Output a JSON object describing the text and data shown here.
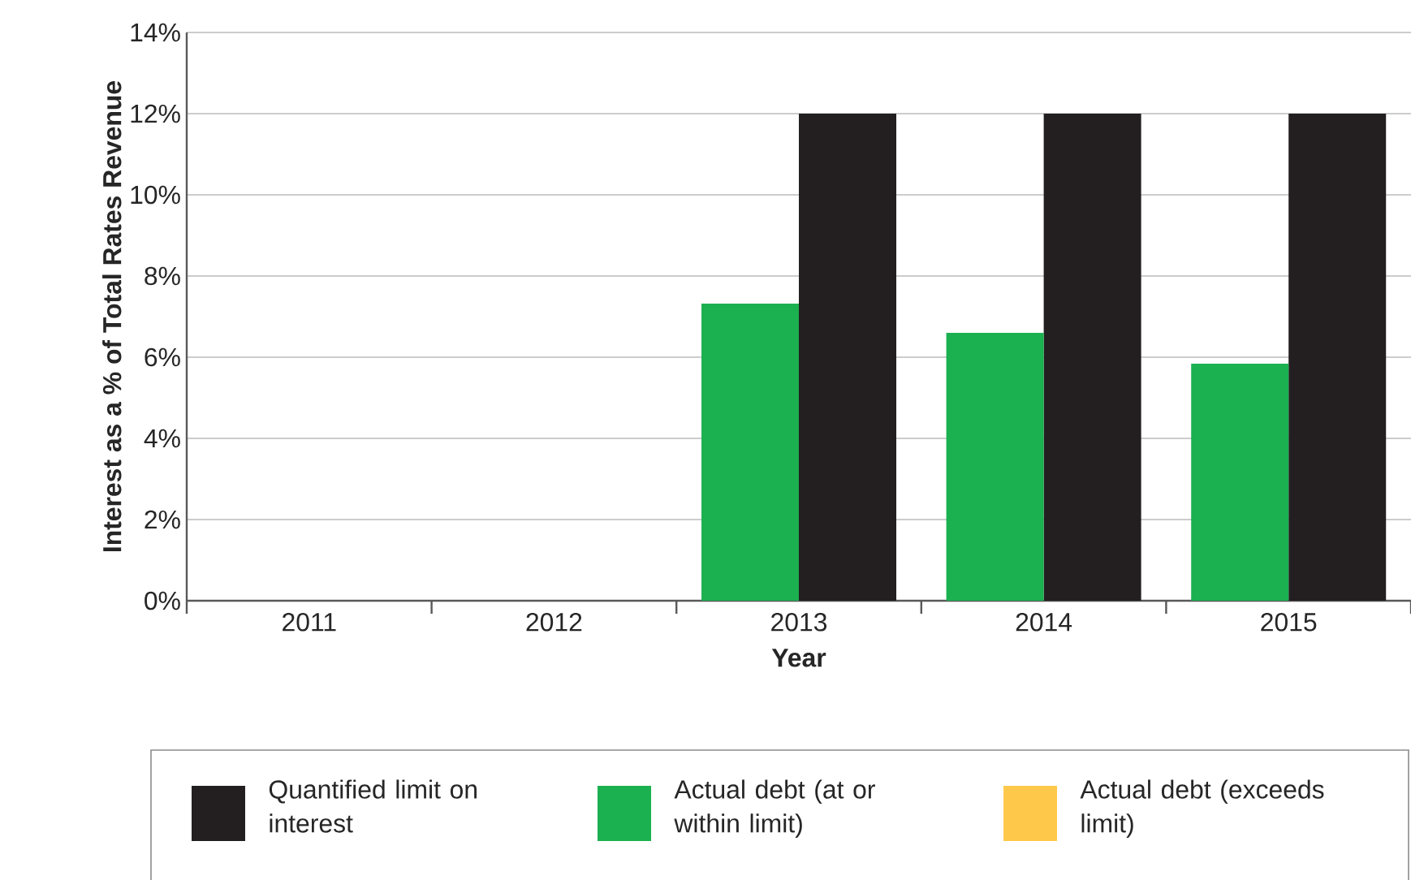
{
  "chart_data": {
    "type": "bar",
    "ylabel": "Interest as a % of Total Rates Revenue",
    "xlabel": "Year",
    "categories": [
      "2011",
      "2012",
      "2013",
      "2014",
      "2015"
    ],
    "series": [
      {
        "name": "Quantified limit on interest",
        "color": "#231f20",
        "values": [
          null,
          null,
          12,
          12,
          12
        ]
      },
      {
        "name": "Actual debt (at or within limit)",
        "color": "#1bb050",
        "values": [
          null,
          null,
          7.32,
          6.6,
          5.84
        ]
      },
      {
        "name": "Actual debt (exceeds limit)",
        "color": "#fec94a",
        "values": [
          null,
          null,
          null,
          null,
          null
        ]
      }
    ],
    "ylim": [
      0,
      14
    ],
    "yticks": [
      {
        "value": 0,
        "label": "0%"
      },
      {
        "value": 2,
        "label": "2%"
      },
      {
        "value": 4,
        "label": "4%"
      },
      {
        "value": 6,
        "label": "6%"
      },
      {
        "value": 8,
        "label": "8%"
      },
      {
        "value": 10,
        "label": "10%"
      },
      {
        "value": 12,
        "label": "12%"
      },
      {
        "value": 14,
        "label": "14%"
      }
    ],
    "grid": "y",
    "legend": "bottom"
  }
}
